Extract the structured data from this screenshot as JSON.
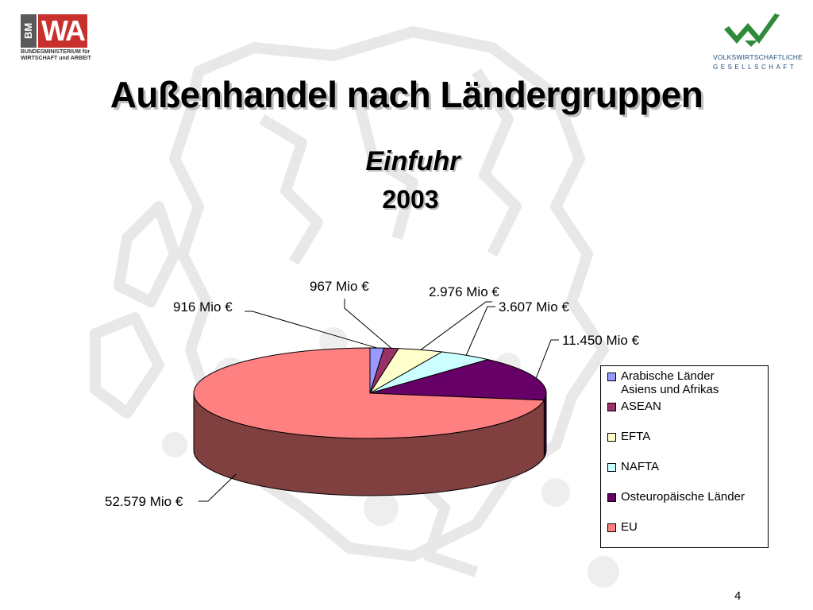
{
  "header": {
    "logo_left_letters_1": "BM",
    "logo_left_letters_2": "WA",
    "logo_left_subtitle_1": "BUNDESMINISTERIUM für",
    "logo_left_subtitle_2": "WIRTSCHAFT und ARBEIT",
    "logo_right_line_1": "VOLKSWIRTSCHAFTLICHE",
    "logo_right_line_2": "GESELLSCHAFT"
  },
  "slide": {
    "title": "Außenhandel nach Ländergruppen",
    "subtitle": "Einfuhr",
    "year": "2003",
    "page_number": "4"
  },
  "chart_data": {
    "type": "pie",
    "three_d": true,
    "unit": "Mio €",
    "categories": [
      "Arabische Länder Asiens und Afrikas",
      "ASEAN",
      "EFTA",
      "NAFTA",
      "Osteuropäische Länder",
      "EU"
    ],
    "values": [
      916,
      967,
      2976,
      3607,
      11450,
      52579
    ],
    "data_labels": [
      "916 Mio €",
      "967 Mio €",
      "2.976 Mio €",
      "3.607 Mio €",
      "11.450 Mio €",
      "52.579 Mio €"
    ],
    "colors": [
      "#9999ff",
      "#993366",
      "#ffffcc",
      "#ccffff",
      "#660066",
      "#ff8080"
    ],
    "side_colors": [
      "#5c5c99",
      "#5c1f3d",
      "#99997a",
      "#7a9999",
      "#3d003d",
      "#804040"
    ],
    "legend": {
      "position": "right",
      "entries": [
        {
          "line1": "Arabische Länder",
          "line2": "Asiens und Afrikas"
        },
        {
          "line1": "ASEAN"
        },
        {
          "line1": "EFTA"
        },
        {
          "line1": "NAFTA"
        },
        {
          "line1": "Osteuropäische Länder"
        },
        {
          "line1": "EU"
        }
      ]
    },
    "title": "",
    "xlabel": "",
    "ylabel": ""
  }
}
